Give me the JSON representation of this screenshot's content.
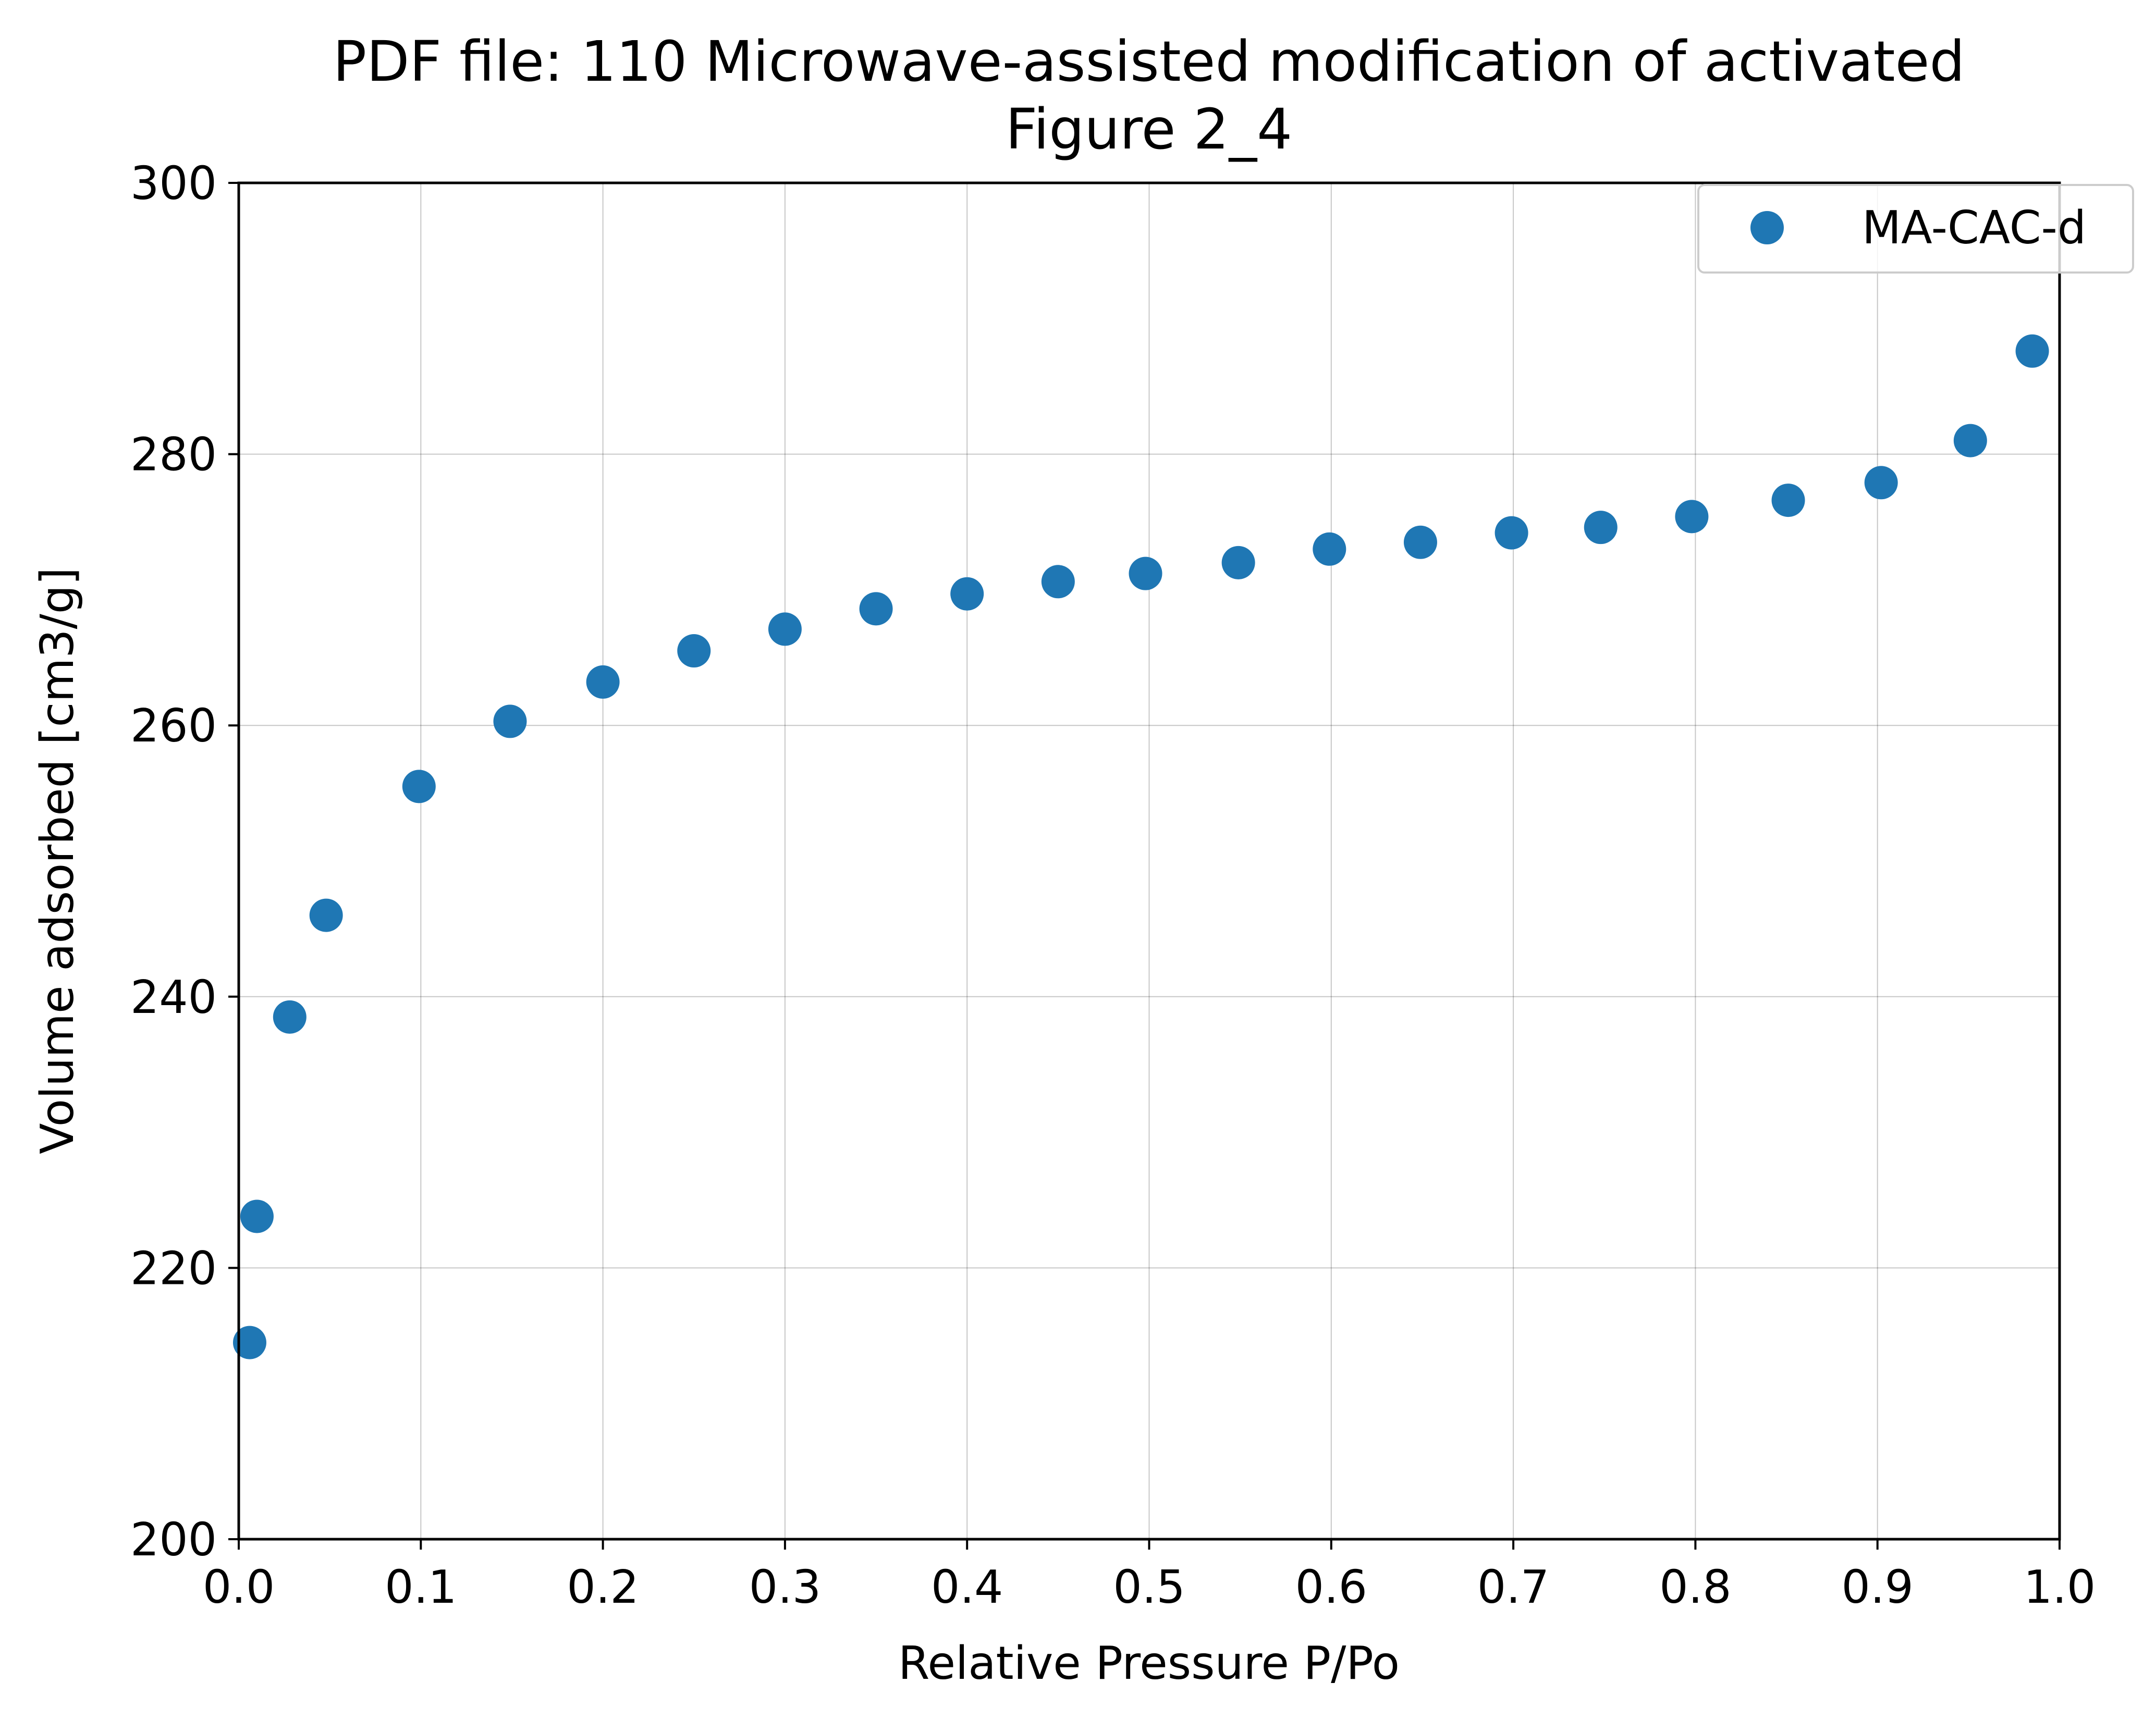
{
  "chart_data": {
    "type": "scatter",
    "title": "PDF file: 110 Microwave-assisted modification of activated",
    "subtitle": "Figure 2_4",
    "xlabel": "Relative Pressure P/Po",
    "ylabel": "Volume adsorbed [cm3/g]",
    "xlim": [
      0.0,
      1.0
    ],
    "ylim": [
      200,
      300
    ],
    "x_ticks": [
      "0.0",
      "0.1",
      "0.2",
      "0.3",
      "0.4",
      "0.5",
      "0.6",
      "0.7",
      "0.8",
      "0.9",
      "1.0"
    ],
    "y_ticks": [
      "200",
      "220",
      "240",
      "260",
      "280",
      "300"
    ],
    "grid": true,
    "legend_position": "top-right",
    "series": [
      {
        "name": "MA-CAC-d",
        "color": "#1f77b4",
        "x": [
          0.006,
          0.01,
          0.028,
          0.048,
          0.099,
          0.149,
          0.2,
          0.25,
          0.3,
          0.35,
          0.4,
          0.45,
          0.498,
          0.549,
          0.599,
          0.649,
          0.699,
          0.748,
          0.798,
          0.851,
          0.902,
          0.951,
          0.985
        ],
        "y": [
          214.5,
          223.8,
          238.5,
          246.0,
          255.5,
          260.3,
          263.2,
          265.5,
          267.1,
          268.6,
          269.7,
          270.6,
          271.2,
          272.0,
          273.0,
          273.5,
          274.2,
          274.6,
          275.4,
          276.6,
          277.9,
          281.0,
          287.6
        ]
      }
    ]
  }
}
